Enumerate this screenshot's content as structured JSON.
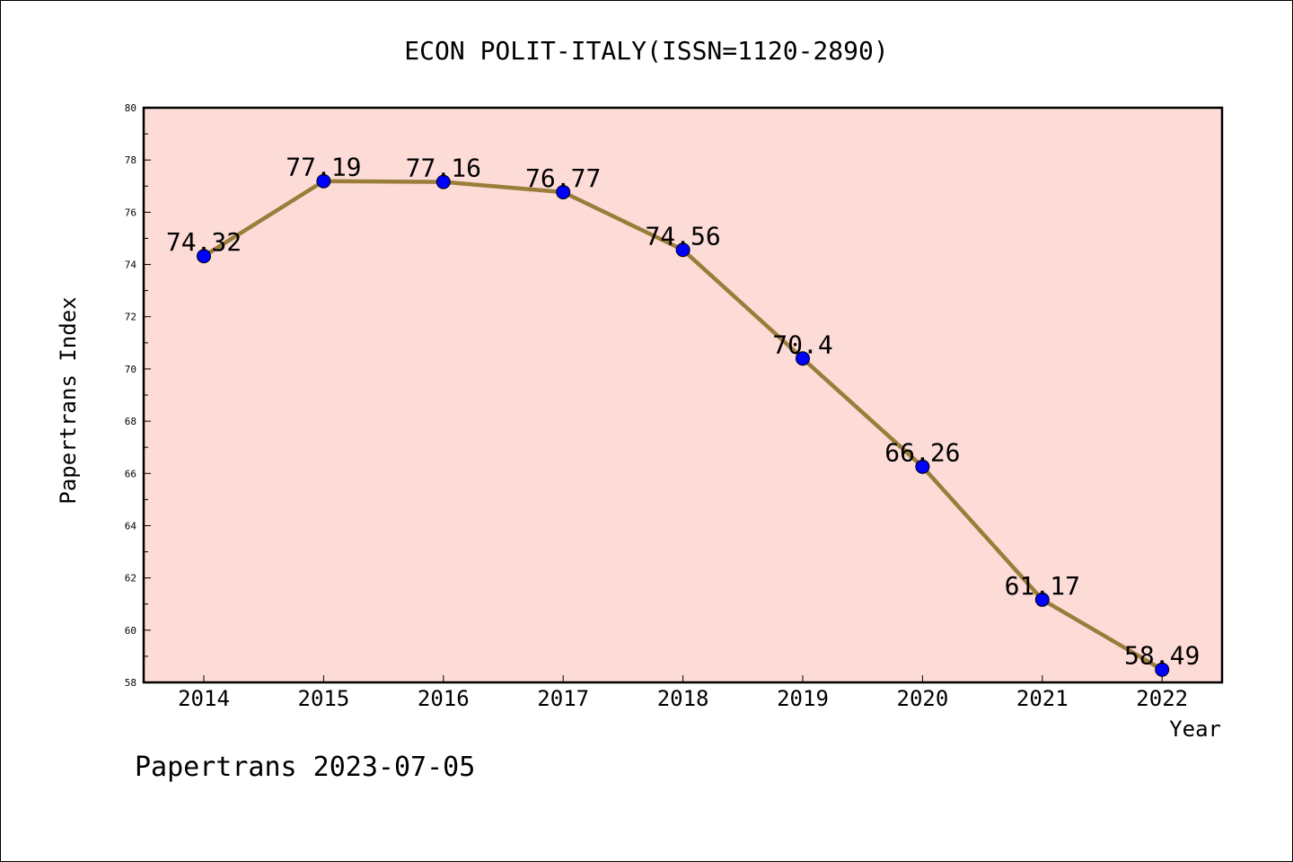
{
  "chart_data": {
    "type": "line",
    "title": "ECON POLIT-ITALY(ISSN=1120-2890)",
    "xlabel": "Year",
    "ylabel": "Papertrans Index",
    "x": [
      "2014",
      "2015",
      "2016",
      "2017",
      "2018",
      "2019",
      "2020",
      "2021",
      "2022"
    ],
    "series": [
      {
        "values": [
          74.32,
          77.19,
          77.16,
          76.77,
          74.56,
          70.4,
          66.26,
          61.17,
          58.49
        ]
      }
    ],
    "data_labels": [
      "74.32",
      "77.19",
      "77.16",
      "76.77",
      "74.56",
      "70.4",
      "66.26",
      "61.17",
      "58.49"
    ],
    "ylim": [
      58,
      80
    ],
    "yticks": [
      58,
      60,
      62,
      64,
      66,
      68,
      70,
      72,
      74,
      76,
      78,
      80
    ],
    "grid": false,
    "colors": {
      "line": "#9a7d3a",
      "marker": "#0000ff",
      "plot_bg": "#fddcd8"
    }
  },
  "footer": "Papertrans 2023-07-05"
}
